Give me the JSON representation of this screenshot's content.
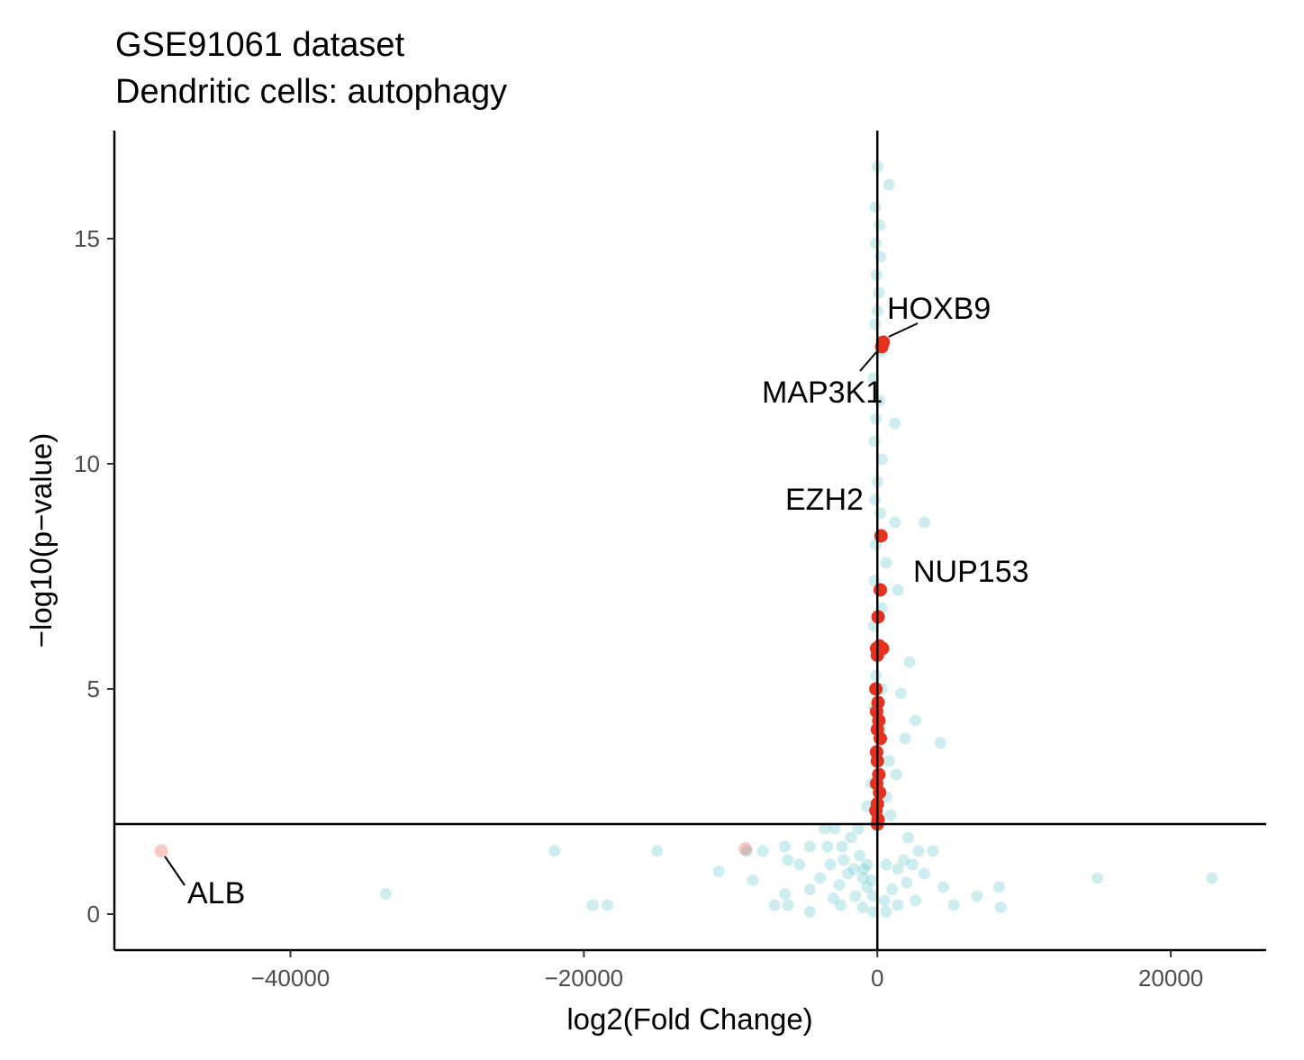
{
  "chart_data": {
    "type": "scatter",
    "title": "GSE91061 dataset",
    "subtitle": "Dendritic cells: autophagy",
    "xlabel": "log2(Fold Change)",
    "ylabel": "−log10(p−value)",
    "xlim": [
      -52000,
      26500
    ],
    "ylim": [
      -0.8,
      17.4
    ],
    "x_ticks": [
      -40000,
      -20000,
      0,
      20000
    ],
    "x_tick_labels": [
      "−40000",
      "−20000",
      "0",
      "20000"
    ],
    "y_ticks": [
      0,
      5,
      10,
      15
    ],
    "y_tick_labels": [
      "0",
      "5",
      "10",
      "15"
    ],
    "hline_y": 2.0,
    "vline_x": 0,
    "colors": {
      "background_genes": "#5EC4C9",
      "autophagy_genes": "#E5311F",
      "axis": "#000000"
    },
    "background_points": [
      [
        0,
        16.6
      ],
      [
        800,
        16.2
      ],
      [
        -150,
        15.7
      ],
      [
        150,
        15.3
      ],
      [
        -100,
        14.9
      ],
      [
        200,
        14.6
      ],
      [
        -50,
        14.2
      ],
      [
        100,
        13.8
      ],
      [
        0,
        13.4
      ],
      [
        -150,
        13.1
      ],
      [
        300,
        12.5
      ],
      [
        -250,
        11.9
      ],
      [
        150,
        11.4
      ],
      [
        -100,
        11.0
      ],
      [
        1200,
        10.9
      ],
      [
        -200,
        10.5
      ],
      [
        300,
        10.1
      ],
      [
        0,
        9.6
      ],
      [
        -150,
        9.2
      ],
      [
        200,
        8.9
      ],
      [
        1200,
        8.7
      ],
      [
        3200,
        8.7
      ],
      [
        -100,
        8.2
      ],
      [
        600,
        7.8
      ],
      [
        -200,
        7.4
      ],
      [
        1400,
        7.2
      ],
      [
        300,
        6.8
      ],
      [
        -250,
        6.4
      ],
      [
        150,
        6.0
      ],
      [
        2200,
        5.6
      ],
      [
        -100,
        5.3
      ],
      [
        300,
        5.0
      ],
      [
        1600,
        4.9
      ],
      [
        -200,
        4.6
      ],
      [
        2600,
        4.3
      ],
      [
        200,
        4.1
      ],
      [
        1900,
        3.9
      ],
      [
        4300,
        3.8
      ],
      [
        -150,
        3.6
      ],
      [
        800,
        3.4
      ],
      [
        1300,
        3.1
      ],
      [
        -400,
        2.9
      ],
      [
        600,
        2.6
      ],
      [
        -700,
        2.4
      ],
      [
        900,
        2.2
      ],
      [
        -1300,
        1.9
      ],
      [
        -2900,
        1.9
      ],
      [
        -3600,
        1.9
      ],
      [
        -1800,
        1.7
      ],
      [
        2100,
        1.7
      ],
      [
        -2400,
        1.5
      ],
      [
        -3400,
        1.5
      ],
      [
        -4600,
        1.5
      ],
      [
        -6300,
        1.5
      ],
      [
        -7800,
        1.4
      ],
      [
        -8900,
        1.4
      ],
      [
        -15000,
        1.4
      ],
      [
        -22000,
        1.4
      ],
      [
        2800,
        1.4
      ],
      [
        3800,
        1.4
      ],
      [
        -1200,
        1.3
      ],
      [
        -2300,
        1.2
      ],
      [
        1800,
        1.2
      ],
      [
        -6100,
        1.2
      ],
      [
        -700,
        1.1
      ],
      [
        -5300,
        1.1
      ],
      [
        -3200,
        1.1
      ],
      [
        600,
        1.1
      ],
      [
        2400,
        1.1
      ],
      [
        -900,
        1.0
      ],
      [
        -1600,
        1.0
      ],
      [
        1400,
        1.0
      ],
      [
        -10800,
        0.95
      ],
      [
        -2000,
        0.9
      ],
      [
        3200,
        0.9
      ],
      [
        -1000,
        0.8
      ],
      [
        -3900,
        0.8
      ],
      [
        15000,
        0.8
      ],
      [
        22800,
        0.8
      ],
      [
        -8500,
        0.75
      ],
      [
        -400,
        0.75
      ],
      [
        2000,
        0.7
      ],
      [
        -2600,
        0.65
      ],
      [
        -700,
        0.6
      ],
      [
        4500,
        0.6
      ],
      [
        8300,
        0.6
      ],
      [
        -4600,
        0.55
      ],
      [
        1000,
        0.55
      ],
      [
        -33500,
        0.45
      ],
      [
        -6300,
        0.45
      ],
      [
        -1500,
        0.4
      ],
      [
        -300,
        0.4
      ],
      [
        6800,
        0.4
      ],
      [
        -3000,
        0.35
      ],
      [
        500,
        0.3
      ],
      [
        2600,
        0.3
      ],
      [
        -18400,
        0.2
      ],
      [
        -19400,
        0.2
      ],
      [
        -7000,
        0.2
      ],
      [
        -6100,
        0.2
      ],
      [
        -2500,
        0.2
      ],
      [
        1400,
        0.2
      ],
      [
        5200,
        0.2
      ],
      [
        8400,
        0.15
      ],
      [
        -1000,
        0.15
      ],
      [
        -4600,
        0.05
      ],
      [
        -300,
        0.05
      ],
      [
        600,
        0.05
      ]
    ],
    "highlighted_points": [
      [
        400,
        12.7
      ],
      [
        300,
        12.6
      ],
      [
        250,
        8.4
      ],
      [
        200,
        7.2
      ],
      [
        50,
        6.6
      ],
      [
        -50,
        5.9
      ],
      [
        150,
        5.95
      ],
      [
        350,
        5.9
      ],
      [
        0,
        5.75
      ],
      [
        -100,
        5.0
      ],
      [
        50,
        4.7
      ],
      [
        -50,
        4.5
      ],
      [
        100,
        4.3
      ],
      [
        0,
        4.1
      ],
      [
        200,
        3.9
      ],
      [
        -50,
        3.6
      ],
      [
        0,
        3.4
      ],
      [
        100,
        3.1
      ],
      [
        -50,
        2.9
      ],
      [
        150,
        2.7
      ],
      [
        0,
        2.45
      ],
      [
        -100,
        2.3
      ],
      [
        50,
        2.1
      ],
      [
        0,
        2.0
      ],
      [
        -9000,
        1.45
      ]
    ],
    "labeled_points": [
      {
        "gene": "HOXB9",
        "x": 400,
        "y": 12.7
      },
      {
        "gene": "MAP3K1",
        "x": 300,
        "y": 12.6
      },
      {
        "gene": "EZH2",
        "x": 0,
        "y": 9.1
      },
      {
        "gene": "NUP153",
        "x": 250,
        "y": 8.4
      },
      {
        "gene": "ALB",
        "x": -48800,
        "y": 1.4
      }
    ]
  }
}
